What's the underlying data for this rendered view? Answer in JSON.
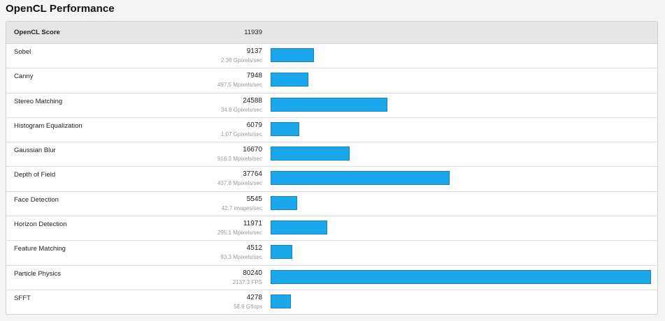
{
  "page": {
    "title": "OpenCL Performance"
  },
  "header": {
    "label": "OpenCL Score",
    "score": "11939"
  },
  "colors": {
    "bar": "#1aa7ec",
    "bar_border": "#1582bd"
  },
  "max_score": 80240,
  "rows": [
    {
      "name": "Sobel",
      "score": "9137",
      "detail": "2.36 Gpixels/sec",
      "value": 9137
    },
    {
      "name": "Canny",
      "score": "7948",
      "detail": "497.5 Mpixels/sec",
      "value": 7948
    },
    {
      "name": "Stereo Matching",
      "score": "24588",
      "detail": "34.8 Gpixels/sec",
      "value": 24588
    },
    {
      "name": "Histogram Equalization",
      "score": "6079",
      "detail": "1.07 Gpixels/sec",
      "value": 6079
    },
    {
      "name": "Gaussian Blur",
      "score": "16670",
      "detail": "916.3 Mpixels/sec",
      "value": 16670
    },
    {
      "name": "Depth of Field",
      "score": "37764",
      "detail": "437.8 Mpixels/sec",
      "value": 37764
    },
    {
      "name": "Face Detection",
      "score": "5545",
      "detail": "42.7 images/sec",
      "value": 5545
    },
    {
      "name": "Horizon Detection",
      "score": "11971",
      "detail": "295.1 Mpixels/sec",
      "value": 11971
    },
    {
      "name": "Feature Matching",
      "score": "4512",
      "detail": "93.3 Mpixels/sec",
      "value": 4512
    },
    {
      "name": "Particle Physics",
      "score": "80240",
      "detail": "2137.3 FPS",
      "value": 80240
    },
    {
      "name": "SFFT",
      "score": "4278",
      "detail": "58.9 Gflops",
      "value": 4278
    }
  ]
}
